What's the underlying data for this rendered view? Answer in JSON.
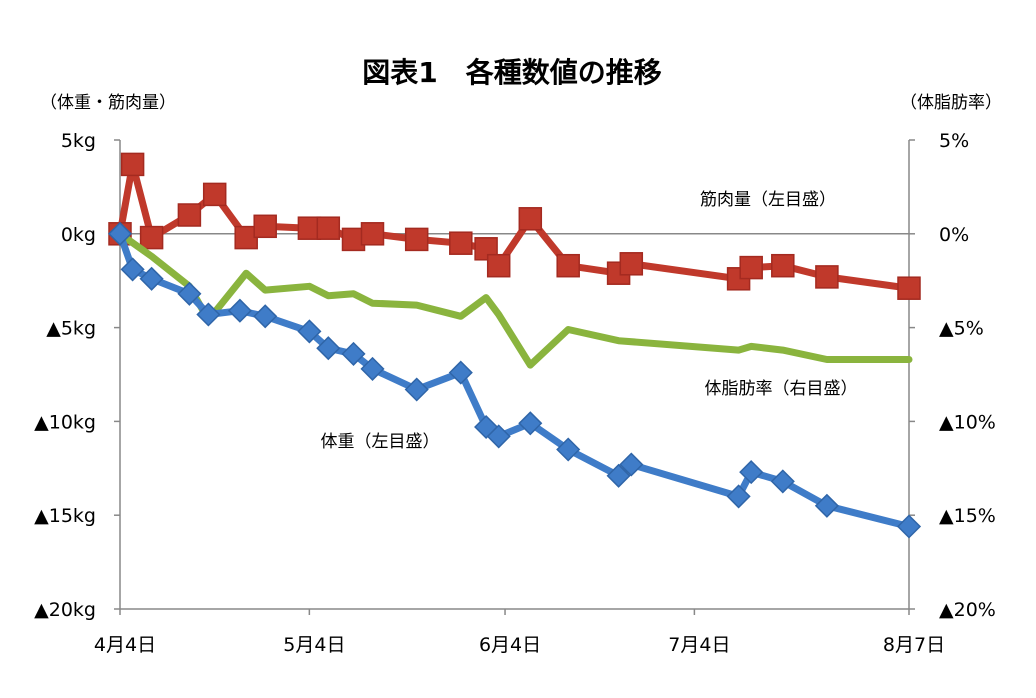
{
  "chart_data": {
    "type": "line",
    "title": "図表1　各種数値の推移",
    "left_axis_label": "（体重・筋肉量）",
    "right_axis_label": "（体脂肪率）",
    "left_ticks": [
      {
        "value": 5,
        "label": "5kg"
      },
      {
        "value": 0,
        "label": "0kg"
      },
      {
        "value": -5,
        "label": "▲5kg"
      },
      {
        "value": -10,
        "label": "▲10kg"
      },
      {
        "value": -15,
        "label": "▲15kg"
      },
      {
        "value": -20,
        "label": "▲20kg"
      }
    ],
    "right_ticks": [
      {
        "value": 5,
        "label": "5%"
      },
      {
        "value": 0,
        "label": "0%"
      },
      {
        "value": -5,
        "label": "▲5%"
      },
      {
        "value": -10,
        "label": "▲10%"
      },
      {
        "value": -15,
        "label": "▲15%"
      },
      {
        "value": -20,
        "label": "▲20%"
      }
    ],
    "ylim": [
      -20,
      5
    ],
    "xlim": [
      "2013-04-04",
      "2013-08-07"
    ],
    "x_ticks": [
      {
        "date": "2013-04-04",
        "label": "4月4日"
      },
      {
        "date": "2013-05-04",
        "label": "5月4日"
      },
      {
        "date": "2013-06-04",
        "label": "6月4日"
      },
      {
        "date": "2013-07-04",
        "label": "7月4日"
      },
      {
        "date": "2013-08-07",
        "label": "8月7日"
      }
    ],
    "grid": false,
    "series": [
      {
        "name": "筋肉量（左目盛）",
        "axis": "left",
        "color": "#c0392b",
        "marker": "square",
        "points": [
          {
            "x": "2013-04-04",
            "y": 0.0
          },
          {
            "x": "2013-04-06",
            "y": 3.7
          },
          {
            "x": "2013-04-09",
            "y": -0.2
          },
          {
            "x": "2013-04-15",
            "y": 1.0
          },
          {
            "x": "2013-04-19",
            "y": 2.1
          },
          {
            "x": "2013-04-24",
            "y": -0.2
          },
          {
            "x": "2013-04-27",
            "y": 0.4
          },
          {
            "x": "2013-05-04",
            "y": 0.3
          },
          {
            "x": "2013-05-07",
            "y": 0.3
          },
          {
            "x": "2013-05-11",
            "y": -0.3
          },
          {
            "x": "2013-05-14",
            "y": 0.0
          },
          {
            "x": "2013-05-21",
            "y": -0.3
          },
          {
            "x": "2013-05-28",
            "y": -0.5
          },
          {
            "x": "2013-06-01",
            "y": -0.8
          },
          {
            "x": "2013-06-03",
            "y": -1.7
          },
          {
            "x": "2013-06-08",
            "y": 0.8
          },
          {
            "x": "2013-06-14",
            "y": -1.7
          },
          {
            "x": "2013-06-22",
            "y": -2.1
          },
          {
            "x": "2013-06-24",
            "y": -1.6
          },
          {
            "x": "2013-07-11",
            "y": -2.4
          },
          {
            "x": "2013-07-13",
            "y": -1.8
          },
          {
            "x": "2013-07-18",
            "y": -1.7
          },
          {
            "x": "2013-07-25",
            "y": -2.3
          },
          {
            "x": "2013-08-07",
            "y": -2.9
          }
        ]
      },
      {
        "name": "体脂肪率（右目盛）",
        "axis": "right",
        "color": "#8ab43e",
        "marker": "none",
        "points": [
          {
            "x": "2013-04-04",
            "y": 0.0
          },
          {
            "x": "2013-04-09",
            "y": -1.2
          },
          {
            "x": "2013-04-15",
            "y": -2.8
          },
          {
            "x": "2013-04-18",
            "y": -4.6
          },
          {
            "x": "2013-04-24",
            "y": -2.1
          },
          {
            "x": "2013-04-27",
            "y": -3.0
          },
          {
            "x": "2013-05-04",
            "y": -2.8
          },
          {
            "x": "2013-05-07",
            "y": -3.3
          },
          {
            "x": "2013-05-11",
            "y": -3.2
          },
          {
            "x": "2013-05-14",
            "y": -3.7
          },
          {
            "x": "2013-05-21",
            "y": -3.8
          },
          {
            "x": "2013-05-28",
            "y": -4.4
          },
          {
            "x": "2013-06-01",
            "y": -3.4
          },
          {
            "x": "2013-06-03",
            "y": -4.3
          },
          {
            "x": "2013-06-08",
            "y": -7.0
          },
          {
            "x": "2013-06-14",
            "y": -5.1
          },
          {
            "x": "2013-06-22",
            "y": -5.7
          },
          {
            "x": "2013-07-11",
            "y": -6.2
          },
          {
            "x": "2013-07-13",
            "y": -6.0
          },
          {
            "x": "2013-07-18",
            "y": -6.2
          },
          {
            "x": "2013-07-25",
            "y": -6.7
          },
          {
            "x": "2013-08-07",
            "y": -6.7
          }
        ]
      },
      {
        "name": "体重（左目盛）",
        "axis": "left",
        "color": "#3f7cc8",
        "marker": "diamond",
        "points": [
          {
            "x": "2013-04-04",
            "y": 0.0
          },
          {
            "x": "2013-04-06",
            "y": -1.9
          },
          {
            "x": "2013-04-09",
            "y": -2.4
          },
          {
            "x": "2013-04-15",
            "y": -3.2
          },
          {
            "x": "2013-04-18",
            "y": -4.3
          },
          {
            "x": "2013-04-23",
            "y": -4.1
          },
          {
            "x": "2013-04-27",
            "y": -4.4
          },
          {
            "x": "2013-05-04",
            "y": -5.2
          },
          {
            "x": "2013-05-07",
            "y": -6.1
          },
          {
            "x": "2013-05-11",
            "y": -6.4
          },
          {
            "x": "2013-05-14",
            "y": -7.2
          },
          {
            "x": "2013-05-21",
            "y": -8.3
          },
          {
            "x": "2013-05-28",
            "y": -7.4
          },
          {
            "x": "2013-06-01",
            "y": -10.3
          },
          {
            "x": "2013-06-03",
            "y": -10.8
          },
          {
            "x": "2013-06-08",
            "y": -10.1
          },
          {
            "x": "2013-06-14",
            "y": -11.5
          },
          {
            "x": "2013-06-22",
            "y": -12.9
          },
          {
            "x": "2013-06-24",
            "y": -12.3
          },
          {
            "x": "2013-07-11",
            "y": -14.0
          },
          {
            "x": "2013-07-13",
            "y": -12.7
          },
          {
            "x": "2013-07-18",
            "y": -13.2
          },
          {
            "x": "2013-07-25",
            "y": -14.5
          },
          {
            "x": "2013-08-07",
            "y": -15.6
          }
        ]
      }
    ]
  }
}
